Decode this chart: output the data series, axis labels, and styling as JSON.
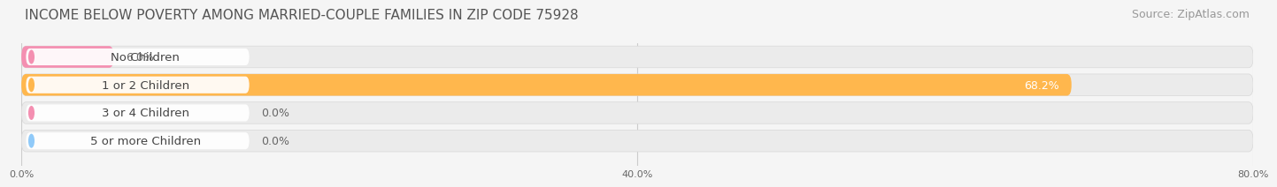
{
  "title": "INCOME BELOW POVERTY AMONG MARRIED-COUPLE FAMILIES IN ZIP CODE 75928",
  "source": "Source: ZipAtlas.com",
  "categories": [
    "No Children",
    "1 or 2 Children",
    "3 or 4 Children",
    "5 or more Children"
  ],
  "values": [
    6.0,
    68.2,
    0.0,
    0.0
  ],
  "bar_colors": [
    "#f48fb1",
    "#ffb74d",
    "#f48fb1",
    "#90caf9"
  ],
  "value_inside_bar": [
    false,
    true,
    false,
    false
  ],
  "background_color": "#f5f5f5",
  "xlim_data": [
    0,
    80
  ],
  "xticks": [
    0.0,
    40.0,
    80.0
  ],
  "xtick_labels": [
    "0.0%",
    "40.0%",
    "80.0%"
  ],
  "title_fontsize": 11,
  "label_fontsize": 9.5,
  "value_fontsize": 9,
  "source_fontsize": 9,
  "bar_bg_color": "#ebebeb",
  "pill_color": "#ffffff",
  "value_outside_color": "#666666",
  "value_inside_color": "#ffffff"
}
